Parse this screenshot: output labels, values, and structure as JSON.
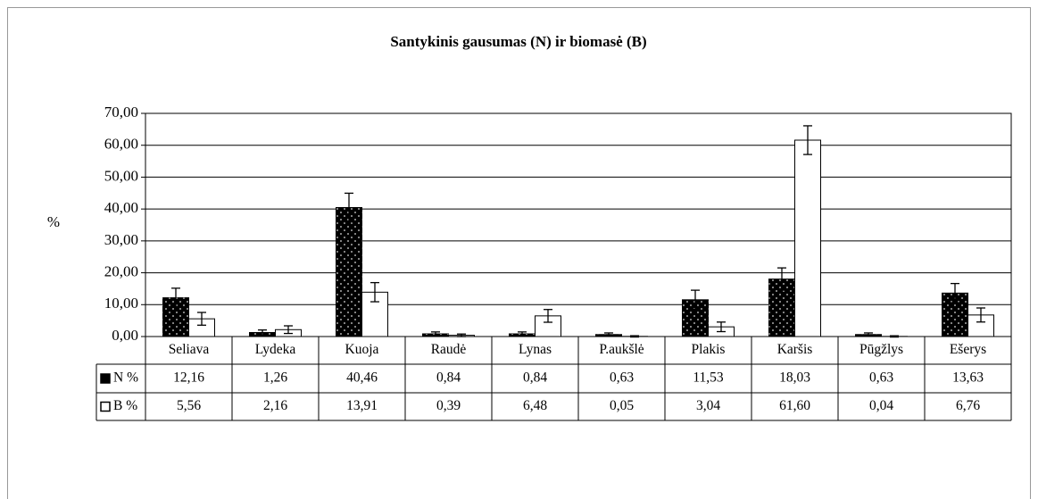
{
  "chart_data": {
    "type": "bar",
    "title": "Santykinis gausumas (N) ir biomasė (B)",
    "y_label": "%",
    "categories": [
      "Seliava",
      "Lydeka",
      "Kuoja",
      "Raudė",
      "Lynas",
      "P.aukšlė",
      "Plakis",
      "Karšis",
      "Pūgžlys",
      "Ešerys"
    ],
    "series": [
      {
        "name": "N %",
        "color": "#000000",
        "values": [
          12.16,
          1.26,
          40.46,
          0.84,
          0.84,
          0.63,
          11.53,
          18.03,
          0.63,
          13.63
        ],
        "value_labels": [
          "12,16",
          "1,26",
          "40,46",
          "0,84",
          "0,84",
          "0,63",
          "11,53",
          "18,03",
          "0,63",
          "13,63"
        ],
        "errors": [
          3,
          0.8,
          4.5,
          0.6,
          0.6,
          0.5,
          3,
          3.5,
          0.5,
          3
        ]
      },
      {
        "name": "B %",
        "color": "#ffffff",
        "values": [
          5.56,
          2.16,
          13.91,
          0.39,
          6.48,
          0.05,
          3.04,
          61.6,
          0.04,
          6.76
        ],
        "value_labels": [
          "5,56",
          "2,16",
          "13,91",
          "0,39",
          "6,48",
          "0,05",
          "3,04",
          "61,60",
          "0,04",
          "6,76"
        ],
        "errors": [
          2,
          1.2,
          3,
          0.4,
          2,
          0.2,
          1.5,
          4.5,
          0.2,
          2.2
        ]
      }
    ],
    "ylim": [
      0,
      70
    ],
    "yticks": [
      {
        "value": 0,
        "label": "0,00"
      },
      {
        "value": 10,
        "label": "10,00"
      },
      {
        "value": 20,
        "label": "20,00"
      },
      {
        "value": 30,
        "label": "30,00"
      },
      {
        "value": 40,
        "label": "40,00"
      },
      {
        "value": 50,
        "label": "50,00"
      },
      {
        "value": 60,
        "label": "60,00"
      },
      {
        "value": 70,
        "label": "70,00"
      }
    ],
    "grid": true
  }
}
